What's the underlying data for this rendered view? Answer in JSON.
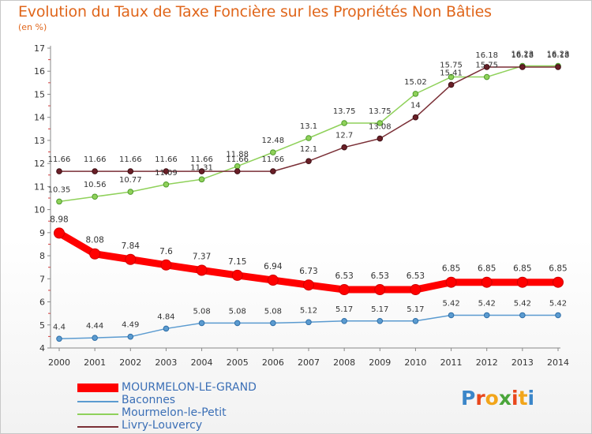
{
  "title": "Evolution du Taux de Taxe Foncière sur les Propriétés Non Bâties",
  "subtitle": "(en %)",
  "logo": {
    "text": "Proxiti",
    "letters": [
      "P",
      "r",
      "o",
      "x",
      "i",
      "t",
      "i"
    ],
    "colors": [
      "#3b86c9",
      "#e8471c",
      "#f2a51a",
      "#4aa53a",
      "#e8471c",
      "#f2a51a",
      "#3b86c9"
    ]
  },
  "chart_data": {
    "type": "line",
    "title": "Evolution du Taux de Taxe Foncière sur les Propriétés Non Bâties",
    "ylabel": "(en %)",
    "xlabel": "",
    "x": [
      "2000",
      "2001",
      "2002",
      "2003",
      "2004",
      "2005",
      "2006",
      "2007",
      "2008",
      "2009",
      "2010",
      "2011",
      "2012",
      "2013",
      "2014"
    ],
    "ylim": [
      4,
      17
    ],
    "yticks": [
      "4",
      "5",
      "6",
      "7",
      "8",
      "9",
      "10",
      "11",
      "12",
      "13",
      "14",
      "15",
      "16",
      "17"
    ],
    "series": [
      {
        "name": "MOURMELON-LE-GRAND",
        "color": "#ff0000",
        "values": [
          8.98,
          8.08,
          7.84,
          7.6,
          7.37,
          7.15,
          6.94,
          6.73,
          6.53,
          6.53,
          6.53,
          6.85,
          6.85,
          6.85,
          6.85
        ],
        "labels": [
          "8.98",
          "8.08",
          "7.84",
          "7.6",
          "7.37",
          "7.15",
          "6.94",
          "6.73",
          "6.53",
          "6.53",
          "6.53",
          "6.85",
          "6.85",
          "6.85",
          "6.85"
        ]
      },
      {
        "name": "Baconnes",
        "color": "#5b9bd0",
        "values": [
          4.4,
          4.44,
          4.49,
          4.84,
          5.08,
          5.08,
          5.08,
          5.12,
          5.17,
          5.17,
          5.17,
          5.42,
          5.42,
          5.42,
          5.42
        ],
        "labels": [
          "4.4",
          "4.44",
          "4.49",
          "4.84",
          "5.08",
          "5.08",
          "5.08",
          "5.12",
          "5.17",
          "5.17",
          "5.17",
          "5.42",
          "5.42",
          "5.42",
          "5.42"
        ]
      },
      {
        "name": "Mourmelon-le-Petit",
        "color": "#8fd15a",
        "values": [
          10.35,
          10.56,
          10.77,
          11.09,
          11.31,
          11.88,
          12.48,
          13.1,
          13.75,
          13.75,
          15.02,
          15.75,
          15.75,
          16.23,
          16.23
        ],
        "labels": [
          "10.35",
          "10.56",
          "10.77",
          "11.09",
          "11.31",
          "11.88",
          "12.48",
          "13.1",
          "13.75",
          "13.75",
          "15.02",
          "15.75",
          "15.75",
          "16.23",
          "16.23"
        ]
      },
      {
        "name": "Livry-Louvercy",
        "color": "#7a2f36",
        "values": [
          11.66,
          11.66,
          11.66,
          11.66,
          11.66,
          11.66,
          11.66,
          12.1,
          12.7,
          13.08,
          14,
          15.41,
          16.18,
          16.18,
          16.18
        ],
        "labels": [
          "11.66",
          "11.66",
          "11.66",
          "11.66",
          "11.66",
          "11.66",
          "11.66",
          "12.1",
          "12.7",
          "13.08",
          "14",
          "15.41",
          "16.18",
          "16.18",
          "16.18"
        ]
      }
    ],
    "legend": [
      "MOURMELON-LE-GRAND",
      "Baconnes",
      "Mourmelon-le-Petit",
      "Livry-Louvercy"
    ],
    "legend_position": "bottom-left",
    "grid": false
  }
}
